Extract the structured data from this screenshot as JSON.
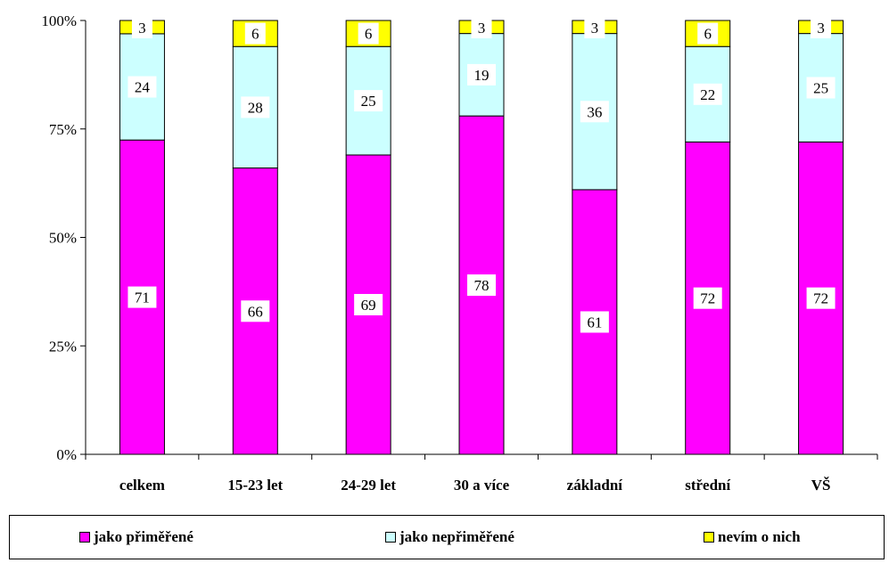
{
  "chart_data": {
    "type": "bar",
    "stacked": true,
    "percent_stacked": true,
    "categories": [
      "celkem",
      "15-23 let",
      "24-29 let",
      "30 a více",
      "základní",
      "střední",
      "VŠ"
    ],
    "series": [
      {
        "name": "jako přiměřené",
        "values": [
          71,
          66,
          69,
          78,
          61,
          72,
          72
        ],
        "color": "#ff00ff"
      },
      {
        "name": "jako nepřiměřené",
        "values": [
          24,
          28,
          25,
          19,
          36,
          22,
          25
        ],
        "color": "#ccffff"
      },
      {
        "name": "nevím o nich",
        "values": [
          3,
          6,
          6,
          3,
          3,
          6,
          3
        ],
        "color": "#ffff00"
      }
    ],
    "y_ticks": [
      "0%",
      "25%",
      "50%",
      "75%",
      "100%"
    ],
    "ylim": [
      0,
      100
    ],
    "grid": false,
    "legend_position": "bottom"
  }
}
